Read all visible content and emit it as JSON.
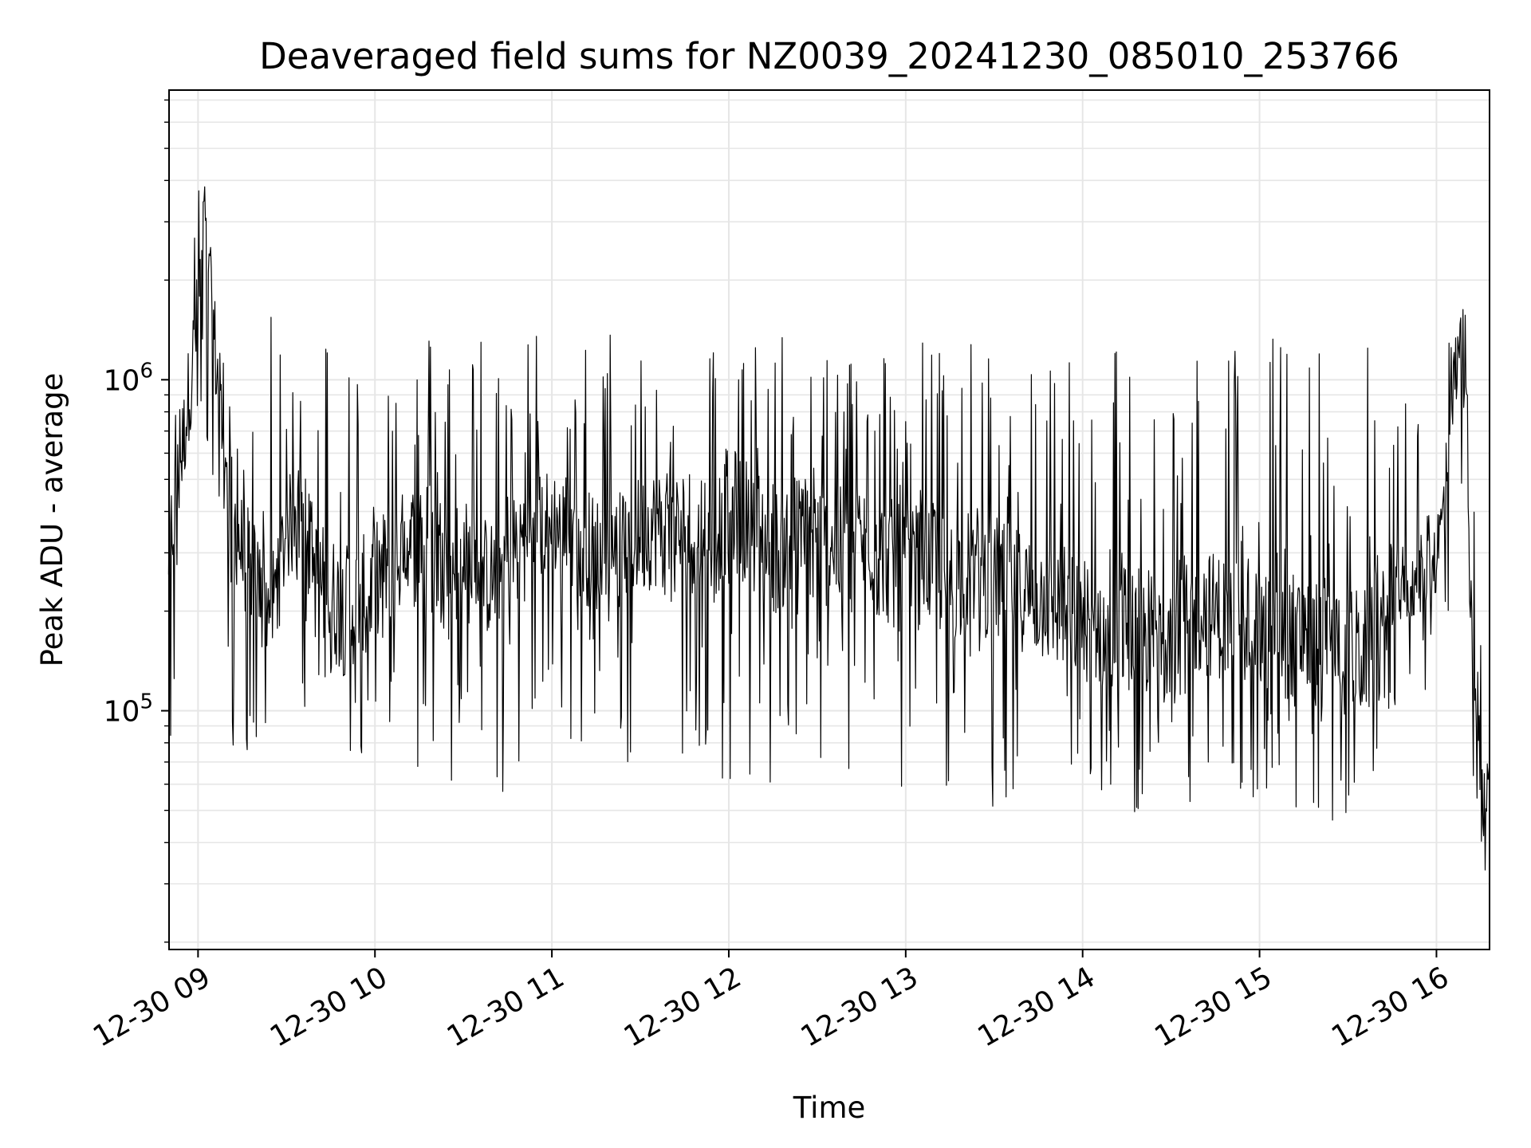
{
  "chart_data": {
    "type": "line",
    "title": "Deaveraged field sums for NZ0039_20241230_085010_253766",
    "xlabel": "Time",
    "ylabel": "Peak ADU - average",
    "xlim": [
      "2024-12-30 08:50:10",
      "2024-12-30 16:18:00"
    ],
    "ylim": [
      19000,
      7500000
    ],
    "yscale": "log",
    "grid": true,
    "line_color": "#000000",
    "x_ticks": [
      {
        "label": "12-30 09",
        "value": "2024-12-30 09:00:00"
      },
      {
        "label": "12-30 10",
        "value": "2024-12-30 10:00:00"
      },
      {
        "label": "12-30 11",
        "value": "2024-12-30 11:00:00"
      },
      {
        "label": "12-30 12",
        "value": "2024-12-30 12:00:00"
      },
      {
        "label": "12-30 13",
        "value": "2024-12-30 13:00:00"
      },
      {
        "label": "12-30 14",
        "value": "2024-12-30 14:00:00"
      },
      {
        "label": "12-30 15",
        "value": "2024-12-30 15:00:00"
      },
      {
        "label": "12-30 16",
        "value": "2024-12-30 16:00:00"
      }
    ],
    "y_ticks": [
      {
        "base": "10",
        "exp": "5",
        "value": 100000
      },
      {
        "base": "10",
        "exp": "6",
        "value": 1000000
      }
    ],
    "series": [
      {
        "x": [
          "2024-12-30 08:50",
          "2024-12-30 08:55",
          "2024-12-30 09:00",
          "2024-12-30 09:02",
          "2024-12-30 09:05",
          "2024-12-30 09:10",
          "2024-12-30 09:15",
          "2024-12-30 09:20",
          "2024-12-30 09:25",
          "2024-12-30 09:30",
          "2024-12-30 09:35",
          "2024-12-30 09:40",
          "2024-12-30 09:45",
          "2024-12-30 09:50",
          "2024-12-30 09:55",
          "2024-12-30 10:00",
          "2024-12-30 10:05",
          "2024-12-30 10:10",
          "2024-12-30 10:15",
          "2024-12-30 10:20",
          "2024-12-30 10:25",
          "2024-12-30 10:30",
          "2024-12-30 10:35",
          "2024-12-30 10:40",
          "2024-12-30 10:45",
          "2024-12-30 10:50",
          "2024-12-30 10:55",
          "2024-12-30 11:00",
          "2024-12-30 11:05",
          "2024-12-30 11:10",
          "2024-12-30 11:15",
          "2024-12-30 11:20",
          "2024-12-30 11:25",
          "2024-12-30 11:30",
          "2024-12-30 11:35",
          "2024-12-30 11:40",
          "2024-12-30 11:45",
          "2024-12-30 11:50",
          "2024-12-30 11:55",
          "2024-12-30 12:00",
          "2024-12-30 12:05",
          "2024-12-30 12:10",
          "2024-12-30 12:15",
          "2024-12-30 12:20",
          "2024-12-30 12:25",
          "2024-12-30 12:30",
          "2024-12-30 12:35",
          "2024-12-30 12:40",
          "2024-12-30 12:45",
          "2024-12-30 12:50",
          "2024-12-30 12:55",
          "2024-12-30 13:00",
          "2024-12-30 13:05",
          "2024-12-30 13:10",
          "2024-12-30 13:15",
          "2024-12-30 13:20",
          "2024-12-30 13:25",
          "2024-12-30 13:30",
          "2024-12-30 13:35",
          "2024-12-30 13:40",
          "2024-12-30 13:45",
          "2024-12-30 13:50",
          "2024-12-30 13:55",
          "2024-12-30 14:00",
          "2024-12-30 14:05",
          "2024-12-30 14:10",
          "2024-12-30 14:15",
          "2024-12-30 14:20",
          "2024-12-30 14:25",
          "2024-12-30 14:30",
          "2024-12-30 14:35",
          "2024-12-30 14:40",
          "2024-12-30 14:45",
          "2024-12-30 14:50",
          "2024-12-30 14:55",
          "2024-12-30 15:00",
          "2024-12-30 15:05",
          "2024-12-30 15:10",
          "2024-12-30 15:15",
          "2024-12-30 15:20",
          "2024-12-30 15:25",
          "2024-12-30 15:30",
          "2024-12-30 15:35",
          "2024-12-30 15:40",
          "2024-12-30 15:45",
          "2024-12-30 15:50",
          "2024-12-30 15:55",
          "2024-12-30 16:00",
          "2024-12-30 16:02",
          "2024-12-30 16:05",
          "2024-12-30 16:07",
          "2024-12-30 16:10",
          "2024-12-30 16:12",
          "2024-12-30 16:14",
          "2024-12-30 16:16",
          "2024-12-30 16:18"
        ],
        "y": [
          300000,
          650000,
          1600000,
          3200000,
          1500000,
          450000,
          300000,
          250000,
          200000,
          350000,
          400000,
          250000,
          220000,
          200000,
          220000,
          250000,
          280000,
          300000,
          330000,
          300000,
          280000,
          290000,
          260000,
          250000,
          300000,
          330000,
          350000,
          380000,
          340000,
          320000,
          300000,
          280000,
          320000,
          340000,
          360000,
          330000,
          350000,
          360000,
          330000,
          420000,
          380000,
          350000,
          300000,
          320000,
          340000,
          330000,
          300000,
          310000,
          320000,
          300000,
          280000,
          260000,
          280000,
          270000,
          250000,
          260000,
          270000,
          250000,
          240000,
          230000,
          220000,
          210000,
          200000,
          190000,
          180000,
          170000,
          180000,
          175000,
          170000,
          180000,
          190000,
          200000,
          195000,
          190000,
          185000,
          180000,
          175000,
          170000,
          165000,
          160000,
          155000,
          150000,
          150000,
          155000,
          230000,
          240000,
          260000,
          300000,
          380000,
          700000,
          1400000,
          900000,
          150000,
          90000,
          50000,
          70000
        ],
        "min": [
          60000,
          180000,
          500000,
          900000,
          200000,
          48000,
          70000,
          75000,
          70000,
          68000,
          75000,
          62000,
          65000,
          55000,
          66000,
          70000,
          68000,
          60000,
          50000,
          45000,
          48000,
          70000,
          75000,
          65000,
          50000,
          70000,
          90000,
          95000,
          80000,
          72000,
          70000,
          65000,
          70000,
          68000,
          66000,
          60000,
          58000,
          56000,
          55000,
          62000,
          60000,
          58000,
          55000,
          56000,
          58000,
          60000,
          55000,
          55000,
          56000,
          55000,
          52000,
          54000,
          58000,
          60000,
          55000,
          50000,
          52000,
          48000,
          55000,
          58000,
          55000,
          52000,
          50000,
          54000,
          56000,
          52000,
          50000,
          48000,
          46000,
          48000,
          52000,
          55000,
          52000,
          50000,
          53000,
          55000,
          55000,
          50000,
          48000,
          45000,
          42000,
          45000,
          50000,
          60000,
          100000,
          120000,
          110000,
          110000,
          120000,
          200000,
          800000,
          100000,
          60000,
          40000,
          22000,
          45000
        ],
        "max": [
          1000000,
          2400000,
          6000000,
          4000000,
          2900000,
          850000,
          1300000,
          1100000,
          1600000,
          1000000,
          1200000,
          1700000,
          1700000,
          1700000,
          1300000,
          1300000,
          1600000,
          1500000,
          1300000,
          1600000,
          1500000,
          1600000,
          1700000,
          1300000,
          1500000,
          1700000,
          1500000,
          1500000,
          1400000,
          1400000,
          1400000,
          1500000,
          1400000,
          1450000,
          1400000,
          1500000,
          1600000,
          1500000,
          1450000,
          1500000,
          1500000,
          1500000,
          1400000,
          1350000,
          1500000,
          1450000,
          1350000,
          1400000,
          1300000,
          1450000,
          1400000,
          1350000,
          1350000,
          1550000,
          1400000,
          1300000,
          1350000,
          1400000,
          1250000,
          1300000,
          1350000,
          1400000,
          1350000,
          1300000,
          1350000,
          1450000,
          1350000,
          1300000,
          1250000,
          1300000,
          1350000,
          1450000,
          1300000,
          1350000,
          1400000,
          1450000,
          1450000,
          1350000,
          1400000,
          1350000,
          1350000,
          1300000,
          1300000,
          1350000,
          1350000,
          900000,
          800000,
          850000,
          900000,
          1700000,
          2200000,
          1600000,
          600000,
          220000,
          150000,
          110000
        ]
      }
    ]
  }
}
